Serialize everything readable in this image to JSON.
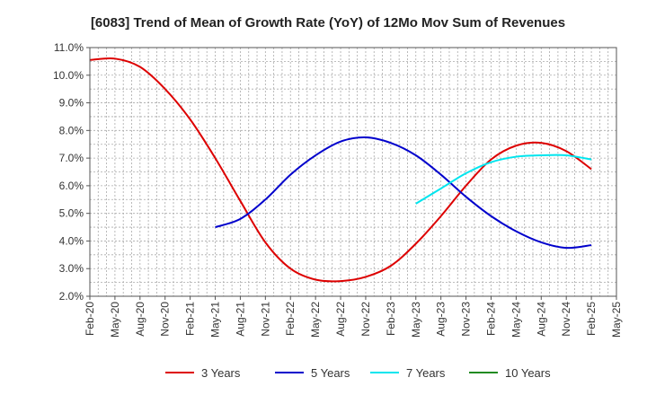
{
  "chart_data": {
    "type": "line",
    "title": "[6083]  Trend of Mean of Growth Rate (YoY) of 12Mo Mov Sum of Revenues",
    "xlabel": "",
    "ylabel": "",
    "ylim": [
      2.0,
      11.0
    ],
    "y_ticks": [
      "2.0%",
      "3.0%",
      "4.0%",
      "5.0%",
      "6.0%",
      "7.0%",
      "8.0%",
      "9.0%",
      "10.0%",
      "11.0%"
    ],
    "x_ticks": [
      "Feb-20",
      "May-20",
      "Aug-20",
      "Nov-20",
      "Feb-21",
      "May-21",
      "Aug-21",
      "Nov-21",
      "Feb-22",
      "May-22",
      "Aug-22",
      "Nov-22",
      "Feb-23",
      "May-23",
      "Aug-23",
      "Nov-23",
      "Feb-24",
      "May-24",
      "Aug-24",
      "Nov-24",
      "Feb-25",
      "May-25"
    ],
    "series": [
      {
        "name": "3 Years",
        "color": "#dd0000",
        "x": [
          "Feb-20",
          "May-20",
          "Aug-20",
          "Nov-20",
          "Feb-21",
          "May-21",
          "Aug-21",
          "Nov-21",
          "Feb-22",
          "May-22",
          "Aug-22",
          "Nov-22",
          "Feb-23",
          "May-23",
          "Aug-23",
          "Nov-23",
          "Feb-24",
          "May-24",
          "Aug-24",
          "Nov-24",
          "Feb-25"
        ],
        "values": [
          10.55,
          10.6,
          10.3,
          9.5,
          8.4,
          7.0,
          5.45,
          3.95,
          3.0,
          2.6,
          2.55,
          2.7,
          3.1,
          3.9,
          4.9,
          6.0,
          6.95,
          7.45,
          7.55,
          7.25,
          6.6
        ]
      },
      {
        "name": "5 Years",
        "color": "#0000cc",
        "x": [
          "May-21",
          "Aug-21",
          "Nov-21",
          "Feb-22",
          "May-22",
          "Aug-22",
          "Nov-22",
          "Feb-23",
          "May-23",
          "Aug-23",
          "Nov-23",
          "Feb-24",
          "May-24",
          "Aug-24",
          "Nov-24",
          "Feb-25"
        ],
        "values": [
          4.5,
          4.8,
          5.5,
          6.4,
          7.1,
          7.6,
          7.75,
          7.55,
          7.1,
          6.4,
          5.6,
          4.9,
          4.35,
          3.95,
          3.75,
          3.85
        ]
      },
      {
        "name": "7 Years",
        "color": "#00e5ee",
        "x": [
          "May-23",
          "Aug-23",
          "Nov-23",
          "Feb-24",
          "May-24",
          "Aug-24",
          "Nov-24",
          "Feb-25"
        ],
        "values": [
          5.35,
          5.9,
          6.45,
          6.85,
          7.05,
          7.1,
          7.1,
          6.95
        ]
      },
      {
        "name": "10 Years",
        "color": "#228b22",
        "x": [],
        "values": []
      }
    ],
    "legend_position": "bottom",
    "grid": true
  }
}
